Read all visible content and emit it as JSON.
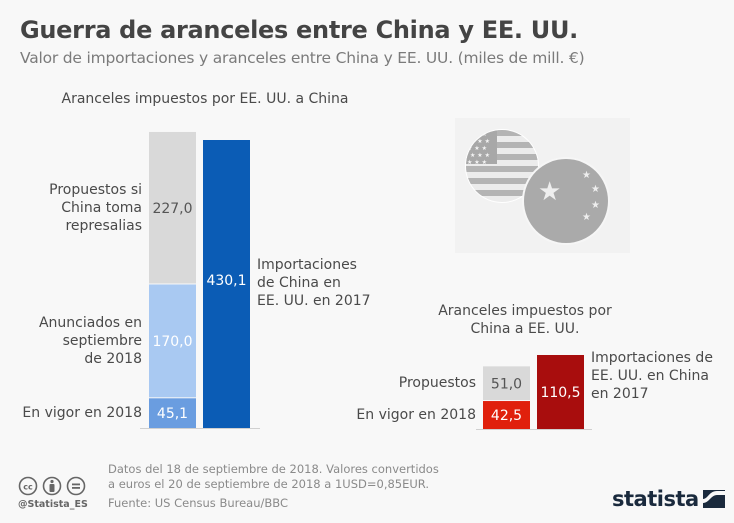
{
  "header": {
    "title": "Guerra de aranceles entre China y EE. UU.",
    "subtitle": "Valor de importaciones y aranceles entre China y EE. UU. (miles de mill. €)"
  },
  "chart_data": [
    {
      "type": "bar",
      "title": "Aranceles impuestos por EE. UU. a China",
      "unit": "miles de mill. €",
      "stacked_bar": {
        "segments": [
          {
            "name": "En vigor en 2018",
            "label_lines": [
              "En vigor en 2018"
            ],
            "value": 45.1,
            "display": "45,1",
            "color": "#6a9de0",
            "text_color": "#ffffff"
          },
          {
            "name": "Anunciados en septiembre de 2018",
            "label_lines": [
              "Anunciados en",
              "septiembre",
              "de 2018"
            ],
            "value": 170.0,
            "display": "170,0",
            "color": "#a9c9f2",
            "text_color": "#ffffff"
          },
          {
            "name": "Propuestos si China toma represalias",
            "label_lines": [
              "Propuestos si",
              "China toma",
              "represalias"
            ],
            "value": 227.0,
            "display": "227,0",
            "color": "#d9d9d9",
            "text_color": "#555555"
          }
        ]
      },
      "total_bar": {
        "name": "Importaciones de China en EE. UU. en 2017",
        "label_lines": [
          "Importaciones",
          "de China en",
          "EE. UU. en 2017"
        ],
        "value": 430.1,
        "display": "430,1",
        "color": "#0b5cb5",
        "text_color": "#ffffff"
      }
    },
    {
      "type": "bar",
      "title": "Aranceles impuestos por China a EE. UU.",
      "title_lines": [
        "Aranceles impuestos por",
        "China a EE. UU."
      ],
      "unit": "miles de mill. €",
      "stacked_bar": {
        "segments": [
          {
            "name": "En vigor en 2018",
            "label_lines": [
              "En vigor en 2018"
            ],
            "value": 42.5,
            "display": "42,5",
            "color": "#e0200c",
            "text_color": "#ffffff"
          },
          {
            "name": "Propuestos",
            "label_lines": [
              "Propuestos"
            ],
            "value": 51.0,
            "display": "51,0",
            "color": "#d9d9d9",
            "text_color": "#555555"
          }
        ]
      },
      "total_bar": {
        "name": "Importaciones de EE. UU. en China en 2017",
        "label_lines": [
          "Importaciones de",
          "EE. UU. en China",
          "en 2017"
        ],
        "value": 110.5,
        "display": "110,5",
        "color": "#a80d0d",
        "text_color": "#ffffff"
      }
    }
  ],
  "illustration": {
    "icons": [
      "usa-flag-icon",
      "china-flag-icon"
    ]
  },
  "footer": {
    "notes": [
      "Datos del 18 de septiembre de 2018. Valores convertidos",
      "a euros el 20 de septiembre de 2018 a 1USD=0,85EUR."
    ],
    "source": "Fuente: US Census Bureau/BBC",
    "handle": "@Statista_ES",
    "license_icons": [
      "cc-icon",
      "attribution-icon",
      "no-derivatives-icon"
    ],
    "logo": "statista"
  }
}
